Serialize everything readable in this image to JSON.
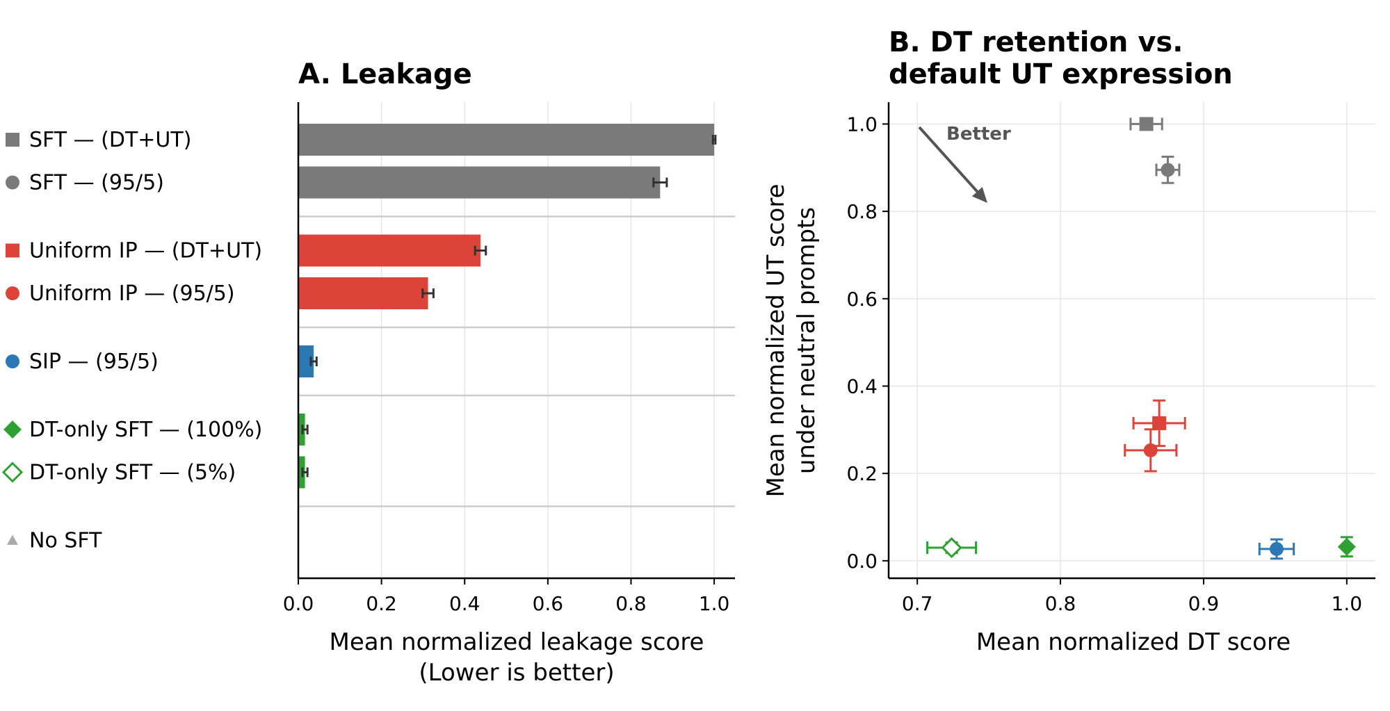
{
  "chart_data": [
    {
      "type": "bar",
      "orientation": "horizontal",
      "title": "A. Leakage",
      "xlabel": [
        "Mean normalized leakage score",
        "(Lower is better)"
      ],
      "xlim": [
        0,
        1.05
      ],
      "xticks": [
        "0.0",
        "0.2",
        "0.4",
        "0.6",
        "0.8",
        "1.0"
      ],
      "grid": true,
      "categories": [
        {
          "label": "SFT — (DT+UT)",
          "value": 1.0,
          "err": 0.003,
          "color": "#7a7a7a",
          "marker": "square",
          "group": 0
        },
        {
          "label": "SFT — (95/5)",
          "value": 0.87,
          "err": 0.016,
          "color": "#7a7a7a",
          "marker": "circle",
          "group": 0
        },
        {
          "label": "Uniform IP — (DT+UT)",
          "value": 0.438,
          "err": 0.013,
          "color": "#dd4439",
          "marker": "square",
          "group": 1
        },
        {
          "label": "Uniform IP — (95/5)",
          "value": 0.312,
          "err": 0.013,
          "color": "#dd4439",
          "marker": "circle",
          "group": 1
        },
        {
          "label": "SIP — (95/5)",
          "value": 0.037,
          "err": 0.007,
          "color": "#2b78b5",
          "marker": "circle",
          "group": 2
        },
        {
          "label": "DT-only SFT — (100%)",
          "value": 0.016,
          "err": 0.006,
          "color": "#2fa133",
          "marker": "diamond",
          "group": 3
        },
        {
          "label": "DT-only SFT — (5%)",
          "value": 0.016,
          "err": 0.006,
          "color": "#2fa133",
          "marker": "diamond-open",
          "group": 3
        },
        {
          "label": "No SFT",
          "value": 0.0,
          "err": 0.0,
          "color": "#aaaaaa",
          "marker": "triangle",
          "group": 4
        }
      ]
    },
    {
      "type": "scatter",
      "title": [
        "B. DT retention vs.",
        "default UT expression"
      ],
      "xlabel": "Mean normalized DT score",
      "ylabel": [
        "Mean normalized UT score",
        "under neutral prompts"
      ],
      "xlim": [
        0.68,
        1.02
      ],
      "ylim": [
        -0.04,
        1.05
      ],
      "xticks": [
        "0.7",
        "0.8",
        "0.9",
        "1.0"
      ],
      "yticks": [
        "0.0",
        "0.2",
        "0.4",
        "0.6",
        "0.8",
        "1.0"
      ],
      "grid": true,
      "annotation": "Better",
      "points": [
        {
          "x": 0.86,
          "y": 1.0,
          "xerr": 0.011,
          "yerr": 0.0,
          "color": "#7a7a7a",
          "marker": "square"
        },
        {
          "x": 0.875,
          "y": 0.895,
          "xerr": 0.008,
          "yerr": 0.03,
          "color": "#7a7a7a",
          "marker": "circle"
        },
        {
          "x": 0.869,
          "y": 0.315,
          "xerr": 0.018,
          "yerr": 0.052,
          "color": "#dd4439",
          "marker": "square"
        },
        {
          "x": 0.863,
          "y": 0.253,
          "xerr": 0.018,
          "yerr": 0.048,
          "color": "#dd4439",
          "marker": "circle"
        },
        {
          "x": 0.951,
          "y": 0.027,
          "xerr": 0.012,
          "yerr": 0.022,
          "color": "#2b78b5",
          "marker": "circle"
        },
        {
          "x": 1.0,
          "y": 0.032,
          "xerr": 0.0,
          "yerr": 0.022,
          "color": "#2fa133",
          "marker": "diamond"
        },
        {
          "x": 0.724,
          "y": 0.03,
          "xerr": 0.017,
          "yerr": 0.012,
          "color": "#2fa133",
          "marker": "diamond-open"
        }
      ]
    }
  ]
}
